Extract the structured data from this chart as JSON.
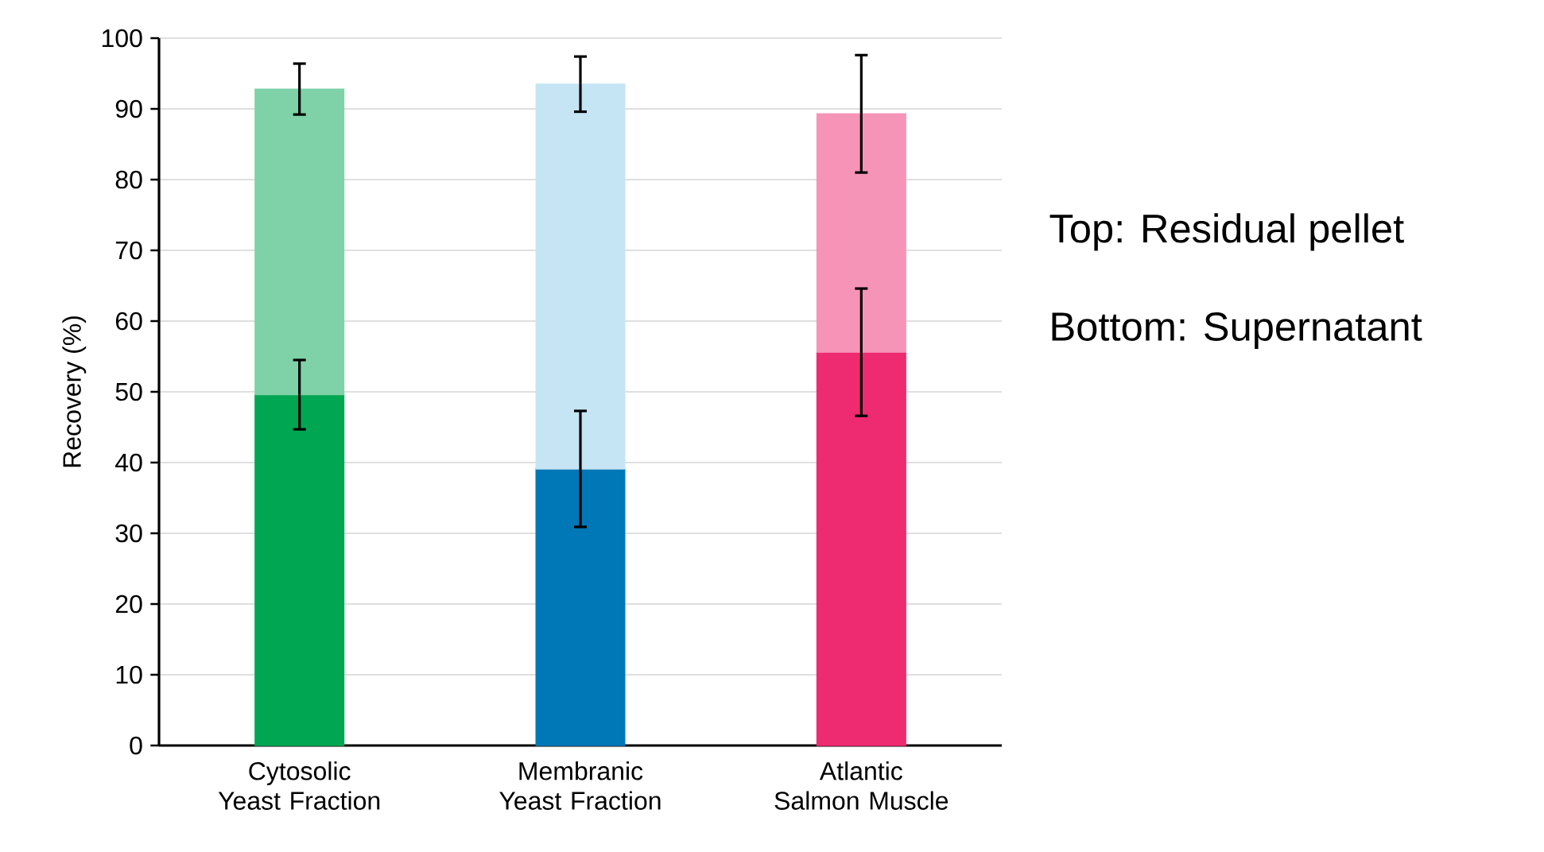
{
  "chart_data": {
    "type": "bar",
    "stacked": true,
    "ylabel": "Recovery (%)",
    "categories": [
      "Cytosolic Yeast Fraction",
      "Membranic Yeast Fraction",
      "Atlantic Salmon Muscle"
    ],
    "series": [
      {
        "colors": [
          "#00a651",
          "#0077b6",
          "#ee2a70"
        ],
        "values": [
          49.6,
          39.1,
          55.6
        ],
        "errors": [
          4.9,
          8.2,
          9.0
        ]
      },
      {
        "colors": [
          "#7fd2a8",
          "#c5e5f5",
          "#f694b7"
        ],
        "values": [
          43.2,
          54.4,
          33.7
        ],
        "errors": [
          3.6,
          3.9,
          8.3
        ]
      }
    ],
    "ylim": [
      0,
      100
    ],
    "yticks": [
      0,
      10,
      20,
      30,
      40,
      50,
      60,
      70,
      80,
      90,
      100
    ],
    "grid": "y",
    "annotations": [
      "Top: Residual pellet",
      "Bottom: Supernatant"
    ]
  }
}
